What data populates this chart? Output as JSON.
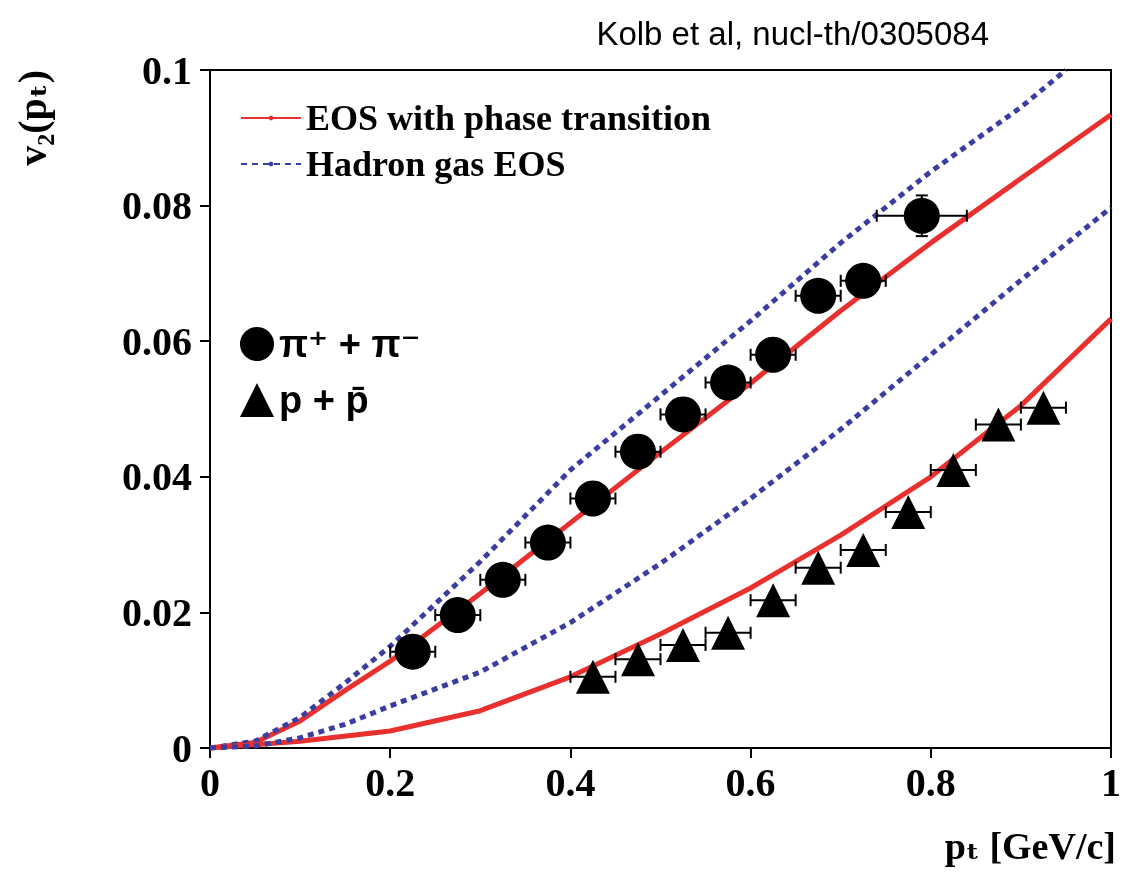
{
  "chart_data": {
    "type": "scatter",
    "title": "Kolb et al, nucl-th/0305084",
    "xlabel": "pₜ [GeV/c]",
    "ylabel": "v₂(pₜ)",
    "xlim": [
      0,
      1
    ],
    "xticks": [
      0,
      0.2,
      0.4,
      0.6,
      0.8,
      1
    ],
    "ylim": [
      0,
      0.1
    ],
    "yticks": [
      0,
      0.02,
      0.04,
      0.06,
      0.08,
      0.1
    ],
    "grid": false,
    "legend": "top left",
    "series": [
      {
        "type": "line",
        "name": "EOS with phase transition",
        "color": "#e8312f",
        "line_style": "solid",
        "x": [
          0,
          0.05,
          0.1,
          0.15,
          0.2,
          0.3,
          0.4,
          0.5,
          0.6,
          0.7,
          0.8,
          0.9,
          1.0
        ],
        "values": [
          0,
          0.0008,
          0.004,
          0.0085,
          0.0128,
          0.0228,
          0.0332,
          0.0436,
          0.0538,
          0.0645,
          0.0745,
          0.084,
          0.0934
        ]
      },
      {
        "type": "line",
        "name": "Hadron gas EOS",
        "color": "#3b3ea0",
        "line_style": "dashed",
        "x": [
          0,
          0.05,
          0.1,
          0.15,
          0.2,
          0.3,
          0.4,
          0.5,
          0.6,
          0.7,
          0.8,
          0.9,
          0.95
        ],
        "values": [
          0,
          0.001,
          0.0045,
          0.0096,
          0.015,
          0.0275,
          0.041,
          0.052,
          0.063,
          0.0745,
          0.085,
          0.0945,
          0.1
        ]
      },
      {
        "type": "line",
        "color": "#e8312f",
        "line_style": "solid",
        "x": [
          0,
          0.1,
          0.2,
          0.3,
          0.4,
          0.5,
          0.6,
          0.7,
          0.8,
          0.9,
          1.0
        ],
        "values": [
          0,
          0.001,
          0.0025,
          0.0055,
          0.0105,
          0.0168,
          0.0236,
          0.0314,
          0.04,
          0.0505,
          0.0633
        ]
      },
      {
        "type": "line",
        "color": "#3b3ea0",
        "line_style": "dashed",
        "x": [
          0,
          0.05,
          0.1,
          0.15,
          0.2,
          0.3,
          0.4,
          0.5,
          0.6,
          0.7,
          0.8,
          0.9,
          1.0
        ],
        "values": [
          0,
          0.0003,
          0.0015,
          0.0035,
          0.0062,
          0.0112,
          0.0185,
          0.0272,
          0.0368,
          0.047,
          0.058,
          0.069,
          0.0797
        ]
      },
      {
        "type": "scatter",
        "name": "π⁺ + π⁻",
        "color": "#000000",
        "marker": "circle",
        "x": [
          0.225,
          0.275,
          0.325,
          0.375,
          0.425,
          0.475,
          0.525,
          0.575,
          0.625,
          0.675,
          0.725,
          0.79
        ],
        "values": [
          0.0142,
          0.0196,
          0.0248,
          0.0303,
          0.0368,
          0.0437,
          0.0492,
          0.0539,
          0.058,
          0.0667,
          0.0689,
          0.0785
        ],
        "errors": [
          null,
          null,
          null,
          null,
          null,
          null,
          null,
          null,
          null,
          null,
          0.002,
          0.003
        ],
        "xerrors": [
          0.025,
          0.025,
          0.025,
          0.025,
          0.025,
          0.025,
          0.025,
          0.025,
          0.025,
          0.025,
          0.025,
          0.05
        ]
      },
      {
        "type": "scatter",
        "name": "p + p̄",
        "color": "#000000",
        "marker": "triangle",
        "x": [
          0.425,
          0.475,
          0.525,
          0.575,
          0.625,
          0.675,
          0.725,
          0.775,
          0.825,
          0.875,
          0.925
        ],
        "values": [
          0.0105,
          0.0131,
          0.0152,
          0.017,
          0.0218,
          0.0266,
          0.0292,
          0.0348,
          0.041,
          0.0477,
          0.0502
        ],
        "xerrors": [
          0.025,
          0.025,
          0.025,
          0.025,
          0.025,
          0.025,
          0.025,
          0.025,
          0.025,
          0.025,
          0.025
        ]
      }
    ]
  }
}
